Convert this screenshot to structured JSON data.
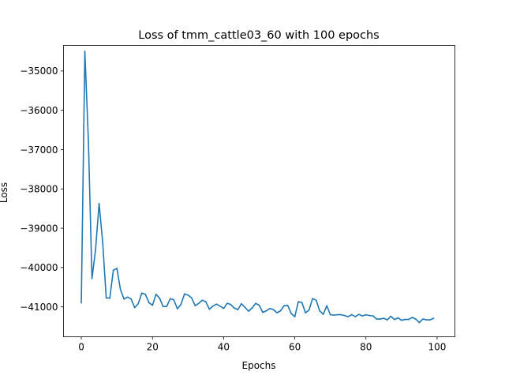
{
  "chart_data": {
    "type": "line",
    "title": "Loss of tmm_cattle03_60 with 100 epochs",
    "xlabel": "Epochs",
    "ylabel": "Loss",
    "xlim": [
      -5,
      105
    ],
    "ylim": [
      -41760,
      -34350
    ],
    "x_ticks": [
      0,
      20,
      40,
      60,
      80,
      100
    ],
    "x_tick_labels": [
      "0",
      "20",
      "40",
      "60",
      "80",
      "100"
    ],
    "y_ticks": [
      -41000,
      -40000,
      -39000,
      -38000,
      -37000,
      -36000,
      -35000
    ],
    "y_tick_labels": [
      "−41000",
      "−40000",
      "−39000",
      "−38000",
      "−37000",
      "−36000",
      "−35000"
    ],
    "grid": false,
    "line_color": "#1f77b4",
    "series": [
      {
        "x": [
          0,
          1,
          2,
          3,
          4,
          5,
          6,
          7,
          8,
          9,
          10,
          11,
          12,
          13,
          14,
          15,
          16,
          17,
          18,
          19,
          20,
          21,
          22,
          23,
          24,
          25,
          26,
          27,
          28,
          29,
          30,
          31,
          32,
          33,
          34,
          35,
          36,
          37,
          38,
          39,
          40,
          41,
          42,
          43,
          44,
          45,
          46,
          47,
          48,
          49,
          50,
          51,
          52,
          53,
          54,
          55,
          56,
          57,
          58,
          59,
          60,
          61,
          62,
          63,
          64,
          65,
          66,
          67,
          68,
          69,
          70,
          71,
          72,
          73,
          74,
          75,
          76,
          77,
          78,
          79,
          80,
          81,
          82,
          83,
          84,
          85,
          86,
          87,
          88,
          89,
          90,
          91,
          92,
          93,
          94,
          95,
          96,
          97,
          98,
          99
        ],
        "values": [
          -40900,
          -34500,
          -36800,
          -40280,
          -39550,
          -38370,
          -39350,
          -40770,
          -40780,
          -40070,
          -40020,
          -40560,
          -40800,
          -40750,
          -40800,
          -41020,
          -40920,
          -40650,
          -40680,
          -40890,
          -40960,
          -40680,
          -40780,
          -40990,
          -40990,
          -40790,
          -40820,
          -41050,
          -40940,
          -40670,
          -40700,
          -40770,
          -40970,
          -40910,
          -40830,
          -40870,
          -41060,
          -40980,
          -40930,
          -40980,
          -41040,
          -40910,
          -40940,
          -41030,
          -41070,
          -40920,
          -41010,
          -41110,
          -41030,
          -40910,
          -40960,
          -41140,
          -41100,
          -41040,
          -41070,
          -41150,
          -41100,
          -40970,
          -40960,
          -41170,
          -41250,
          -40870,
          -40890,
          -41150,
          -41080,
          -40790,
          -40830,
          -41100,
          -41190,
          -40970,
          -41200,
          -41210,
          -41200,
          -41200,
          -41220,
          -41250,
          -41200,
          -41250,
          -41190,
          -41230,
          -41200,
          -41220,
          -41230,
          -41310,
          -41310,
          -41290,
          -41330,
          -41240,
          -41320,
          -41280,
          -41340,
          -41320,
          -41320,
          -41270,
          -41310,
          -41400,
          -41310,
          -41330,
          -41330,
          -41290
        ]
      }
    ]
  }
}
